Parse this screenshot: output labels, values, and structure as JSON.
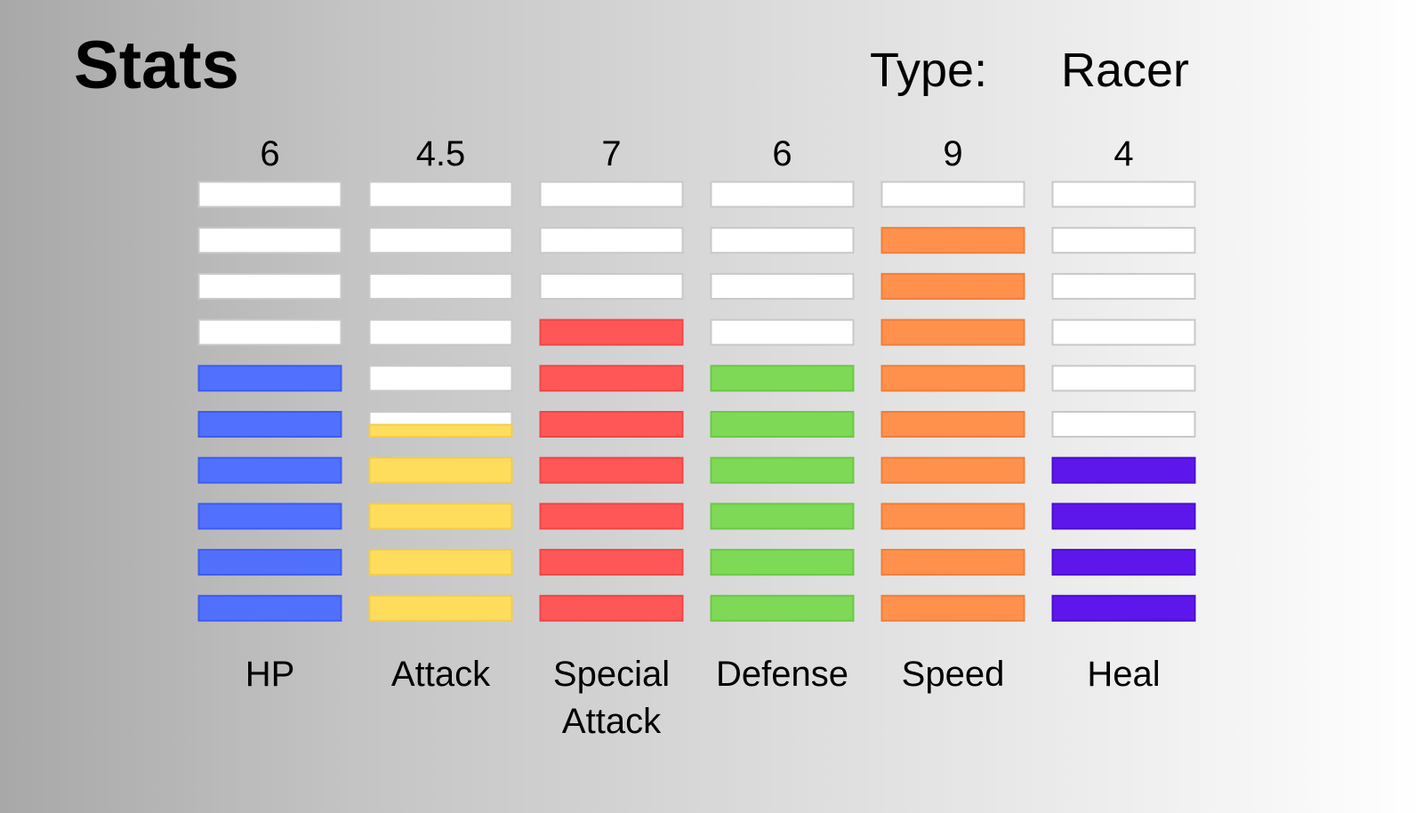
{
  "title": "Stats",
  "type_label": "Type:",
  "type_value": "Racer",
  "chart_data": {
    "type": "bar",
    "max_segments": 10,
    "categories": [
      {
        "label": [
          "HP"
        ],
        "value": 6,
        "value_text": "6",
        "color": "#5170fe",
        "border": "#3d5cf0"
      },
      {
        "label": [
          "Attack"
        ],
        "value": 4.5,
        "value_text": "4.5",
        "color": "#ffdd5c",
        "border": "#f2cd4a"
      },
      {
        "label": [
          "Special",
          "Attack"
        ],
        "value": 7,
        "value_text": "7",
        "color": "#ff5757",
        "border": "#f04545"
      },
      {
        "label": [
          "Defense"
        ],
        "value": 6,
        "value_text": "6",
        "color": "#7ed957",
        "border": "#6cc846"
      },
      {
        "label": [
          "Speed"
        ],
        "value": 9,
        "value_text": "9",
        "color": "#ff914d",
        "border": "#f07f3a"
      },
      {
        "label": [
          "Heal"
        ],
        "value": 4,
        "value_text": "4",
        "color": "#5e17eb",
        "border": "#4a0fd0"
      }
    ],
    "empty_color": "#ffffff",
    "empty_border": "#c8c8c8"
  }
}
